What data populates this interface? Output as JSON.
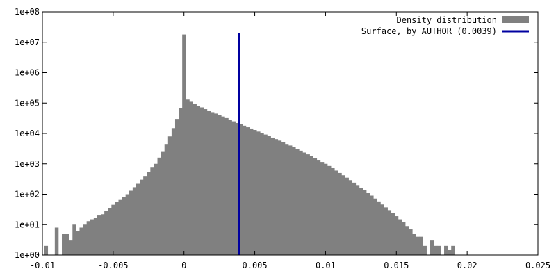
{
  "chart_data": {
    "type": "bar",
    "title": "",
    "xlabel": "",
    "ylabel": "",
    "y_scale": "log",
    "xlim": [
      -0.01,
      0.025
    ],
    "ylim": [
      1,
      100000000
    ],
    "grid": false,
    "legend_placement": "top-right",
    "bin_width": 0.00025,
    "colors": {
      "histogram": "#808080",
      "surface_line": "#0000a0",
      "axis": "#000000"
    },
    "x_ticks": [
      {
        "value": -0.01,
        "label": "-0.01"
      },
      {
        "value": -0.005,
        "label": "-0.005"
      },
      {
        "value": 0,
        "label": "0"
      },
      {
        "value": 0.005,
        "label": "0.005"
      },
      {
        "value": 0.01,
        "label": "0.01"
      },
      {
        "value": 0.015,
        "label": "0.015"
      },
      {
        "value": 0.02,
        "label": "0.02"
      },
      {
        "value": 0.025,
        "label": "0.025"
      }
    ],
    "y_ticks": [
      {
        "value": 1,
        "label": "1e+00"
      },
      {
        "value": 10,
        "label": "1e+01"
      },
      {
        "value": 100,
        "label": "1e+02"
      },
      {
        "value": 1000,
        "label": "1e+03"
      },
      {
        "value": 10000,
        "label": "1e+04"
      },
      {
        "value": 100000,
        "label": "1e+05"
      },
      {
        "value": 1000000,
        "label": "1e+06"
      },
      {
        "value": 10000000,
        "label": "1e+07"
      },
      {
        "value": 100000000,
        "label": "1e+08"
      }
    ],
    "series": [
      {
        "name": "Density distribution",
        "kind": "histogram",
        "bins": [
          [
            -0.00975,
            2
          ],
          [
            -0.009,
            8
          ],
          [
            -0.0085,
            5
          ],
          [
            -0.00825,
            5
          ],
          [
            -0.008,
            3
          ],
          [
            -0.00775,
            10
          ],
          [
            -0.0075,
            6
          ],
          [
            -0.00725,
            8
          ],
          [
            -0.007,
            10
          ],
          [
            -0.00675,
            13
          ],
          [
            -0.0065,
            15
          ],
          [
            -0.00625,
            17
          ],
          [
            -0.006,
            20
          ],
          [
            -0.00575,
            22
          ],
          [
            -0.0055,
            28
          ],
          [
            -0.00525,
            35
          ],
          [
            -0.005,
            45
          ],
          [
            -0.00475,
            55
          ],
          [
            -0.0045,
            65
          ],
          [
            -0.00425,
            80
          ],
          [
            -0.004,
            100
          ],
          [
            -0.00375,
            130
          ],
          [
            -0.0035,
            170
          ],
          [
            -0.00325,
            220
          ],
          [
            -0.003,
            300
          ],
          [
            -0.00275,
            400
          ],
          [
            -0.0025,
            550
          ],
          [
            -0.00225,
            750
          ],
          [
            -0.002,
            1000
          ],
          [
            -0.00175,
            1600
          ],
          [
            -0.0015,
            2600
          ],
          [
            -0.00125,
            4500
          ],
          [
            -0.001,
            8000
          ],
          [
            -0.00075,
            15000
          ],
          [
            -0.0005,
            30000
          ],
          [
            -0.00025,
            70000
          ],
          [
            0,
            18000000
          ],
          [
            0.00025,
            130000
          ],
          [
            0.0005,
            110000
          ],
          [
            0.00075,
            95000
          ],
          [
            0.001,
            82000
          ],
          [
            0.00125,
            72000
          ],
          [
            0.0015,
            63000
          ],
          [
            0.00175,
            56000
          ],
          [
            0.002,
            50000
          ],
          [
            0.00225,
            45000
          ],
          [
            0.0025,
            40000
          ],
          [
            0.00275,
            36000
          ],
          [
            0.003,
            32000
          ],
          [
            0.00325,
            28000
          ],
          [
            0.0035,
            25000
          ],
          [
            0.00375,
            22000
          ],
          [
            0.004,
            20000
          ],
          [
            0.00425,
            18000
          ],
          [
            0.0045,
            16000
          ],
          [
            0.00475,
            14500
          ],
          [
            0.005,
            13000
          ],
          [
            0.00525,
            11500
          ],
          [
            0.0055,
            10300
          ],
          [
            0.00575,
            9200
          ],
          [
            0.006,
            8200
          ],
          [
            0.00625,
            7300
          ],
          [
            0.0065,
            6500
          ],
          [
            0.00675,
            5800
          ],
          [
            0.007,
            5100
          ],
          [
            0.00725,
            4500
          ],
          [
            0.0075,
            4000
          ],
          [
            0.00775,
            3500
          ],
          [
            0.008,
            3100
          ],
          [
            0.00825,
            2700
          ],
          [
            0.0085,
            2350
          ],
          [
            0.00875,
            2050
          ],
          [
            0.009,
            1800
          ],
          [
            0.00925,
            1550
          ],
          [
            0.0095,
            1350
          ],
          [
            0.00975,
            1150
          ],
          [
            0.01,
            1000
          ],
          [
            0.01025,
            850
          ],
          [
            0.0105,
            720
          ],
          [
            0.01075,
            600
          ],
          [
            0.011,
            500
          ],
          [
            0.01125,
            420
          ],
          [
            0.0115,
            350
          ],
          [
            0.01175,
            290
          ],
          [
            0.012,
            240
          ],
          [
            0.01225,
            200
          ],
          [
            0.0125,
            165
          ],
          [
            0.01275,
            135
          ],
          [
            0.013,
            110
          ],
          [
            0.01325,
            90
          ],
          [
            0.0135,
            72
          ],
          [
            0.01375,
            58
          ],
          [
            0.014,
            46
          ],
          [
            0.01425,
            37
          ],
          [
            0.0145,
            30
          ],
          [
            0.01475,
            24
          ],
          [
            0.015,
            19
          ],
          [
            0.01525,
            15
          ],
          [
            0.0155,
            12
          ],
          [
            0.01575,
            9
          ],
          [
            0.016,
            7
          ],
          [
            0.01625,
            5
          ],
          [
            0.0165,
            4
          ],
          [
            0.01675,
            4
          ],
          [
            0.017,
            2
          ],
          [
            0.0175,
            3
          ],
          [
            0.01775,
            2
          ],
          [
            0.018,
            2
          ],
          [
            0.0185,
            2
          ],
          [
            0.01875,
            1.5
          ],
          [
            0.019,
            2
          ]
        ]
      },
      {
        "name": "Surface, by AUTHOR (0.0039)",
        "kind": "vertical-line",
        "x": 0.0039,
        "y_top": 20000000
      }
    ]
  }
}
